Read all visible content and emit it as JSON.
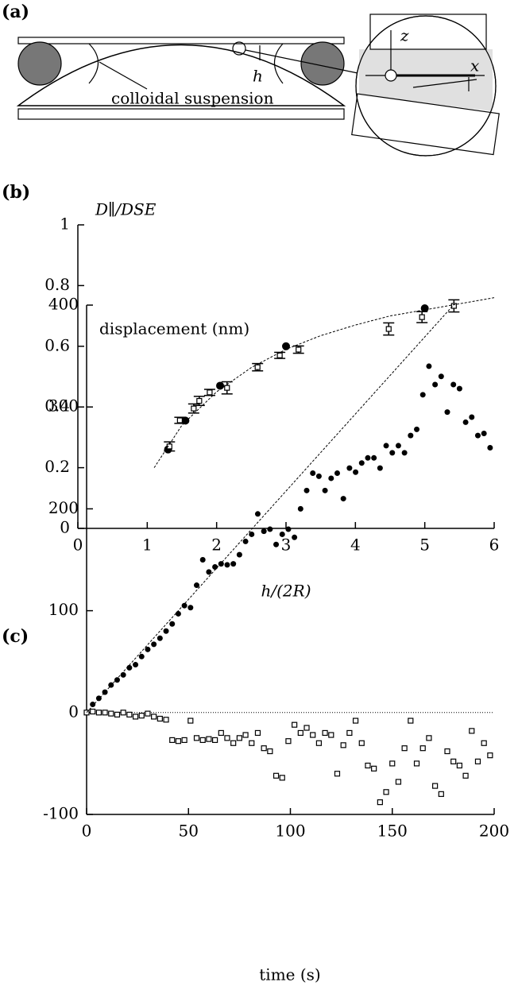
{
  "panel_labels": [
    "(a)",
    "(b)",
    "(c)"
  ],
  "diagram": {
    "h": "h",
    "suspension": "colloidal suspension",
    "z": "z",
    "x": "x"
  },
  "chart_data": [
    {
      "type": "scatter",
      "x_label": "h/(2R)",
      "y_label": "D∥/DSE",
      "xlim": [
        0,
        6
      ],
      "ylim": [
        0,
        1
      ],
      "xticks": [
        0,
        1,
        2,
        3,
        4,
        5,
        6
      ],
      "yticks": [
        0,
        0.2,
        0.4,
        0.6,
        0.8,
        1
      ],
      "series": [
        {
          "marker": "circle",
          "color": "#000000",
          "x": [
            1.3,
            1.55,
            2.05,
            3.0,
            5.0
          ],
          "values": [
            0.26,
            0.355,
            0.47,
            0.6,
            0.725
          ]
        },
        {
          "marker": "square",
          "color": "#000000",
          "x": [
            1.32,
            1.47,
            1.67,
            1.75,
            1.9,
            2.15,
            2.59,
            2.91,
            3.18,
            4.48,
            4.96,
            5.42
          ],
          "values": [
            0.27,
            0.356,
            0.395,
            0.42,
            0.448,
            0.463,
            0.531,
            0.57,
            0.589,
            0.657,
            0.696,
            0.733
          ],
          "errors": [
            0.015,
            0.01,
            0.015,
            0.015,
            0.01,
            0.02,
            0.012,
            0.01,
            0.012,
            0.02,
            0.018,
            0.02
          ]
        },
        {
          "marker": "none",
          "line": "dashed",
          "color": "#000000",
          "x": [
            1.1,
            1.5,
            2,
            2.5,
            3,
            3.5,
            4,
            4.5,
            5,
            5.5,
            6
          ],
          "values": [
            0.2,
            0.34,
            0.45,
            0.53,
            0.59,
            0.635,
            0.67,
            0.7,
            0.72,
            0.74,
            0.76
          ]
        }
      ]
    },
    {
      "type": "scatter",
      "x_label": "time (s)",
      "y_label": "displacement (nm)",
      "xlim": [
        0,
        200
      ],
      "ylim": [
        -100,
        400
      ],
      "xticks": [
        0,
        50,
        100,
        150,
        200
      ],
      "yticks": [
        -100,
        0,
        100,
        200,
        300,
        400
      ],
      "reference_line": 0,
      "series": [
        {
          "marker": "circle",
          "color": "#000000",
          "x": [
            0,
            3,
            6,
            9,
            12,
            15,
            18,
            21,
            24,
            27,
            30,
            33,
            36,
            39,
            42,
            45,
            48,
            51,
            54,
            57,
            60,
            63,
            66,
            69,
            72,
            75,
            78,
            81,
            84,
            87,
            90,
            93,
            96,
            99,
            102,
            105,
            108,
            111,
            114,
            117,
            120,
            123,
            126,
            129,
            132,
            135,
            138,
            141,
            144,
            147,
            150,
            153,
            156,
            159,
            162,
            165,
            168,
            171,
            174,
            177,
            180,
            183,
            186,
            189,
            192,
            195,
            198
          ],
          "values": [
            0,
            8,
            14,
            20,
            27,
            32,
            37,
            44,
            47,
            55,
            62,
            67,
            73,
            80,
            87,
            97,
            105,
            103,
            125,
            150,
            138,
            143,
            146,
            145,
            146,
            155,
            168,
            175,
            195,
            178,
            180,
            165,
            175,
            180,
            172,
            200,
            218,
            235,
            232,
            218,
            230,
            235,
            210,
            240,
            236,
            245,
            250,
            250,
            240,
            262,
            255,
            262,
            255,
            272,
            278,
            312,
            340,
            322,
            330,
            295,
            322,
            318,
            285,
            290,
            272,
            274,
            260
          ]
        },
        {
          "marker": "square",
          "color": "#000000",
          "x": [
            0,
            3,
            6,
            9,
            12,
            15,
            18,
            21,
            24,
            27,
            30,
            33,
            36,
            39,
            42,
            45,
            48,
            51,
            54,
            57,
            60,
            63,
            66,
            69,
            72,
            75,
            78,
            81,
            84,
            87,
            90,
            93,
            96,
            99,
            102,
            105,
            108,
            111,
            114,
            117,
            120,
            123,
            126,
            129,
            132,
            135,
            138,
            141,
            144,
            147,
            150,
            153,
            156,
            159,
            162,
            165,
            168,
            171,
            174,
            177,
            180,
            183,
            186,
            189,
            192,
            195,
            198
          ],
          "values": [
            0,
            1,
            0,
            0,
            -1,
            -2,
            0,
            -2,
            -4,
            -3,
            -1,
            -4,
            -6,
            -7,
            -27,
            -28,
            -27,
            -8,
            -25,
            -27,
            -26,
            -27,
            -20,
            -25,
            -30,
            -25,
            -22,
            -30,
            -20,
            -35,
            -38,
            -62,
            -64,
            -28,
            -12,
            -20,
            -15,
            -22,
            -30,
            -20,
            -22,
            -60,
            -32,
            -20,
            -8,
            -30,
            -52,
            -55,
            -88,
            -78,
            -50,
            -68,
            -35,
            -8,
            -50,
            -35,
            -25,
            -72,
            -80,
            -38,
            -48,
            -52,
            -62,
            -18,
            -48,
            -30,
            -42
          ]
        },
        {
          "marker": "none",
          "line": "dashed",
          "color": "#000000",
          "x": [
            0,
            180
          ],
          "values": [
            0,
            400
          ]
        }
      ]
    }
  ]
}
